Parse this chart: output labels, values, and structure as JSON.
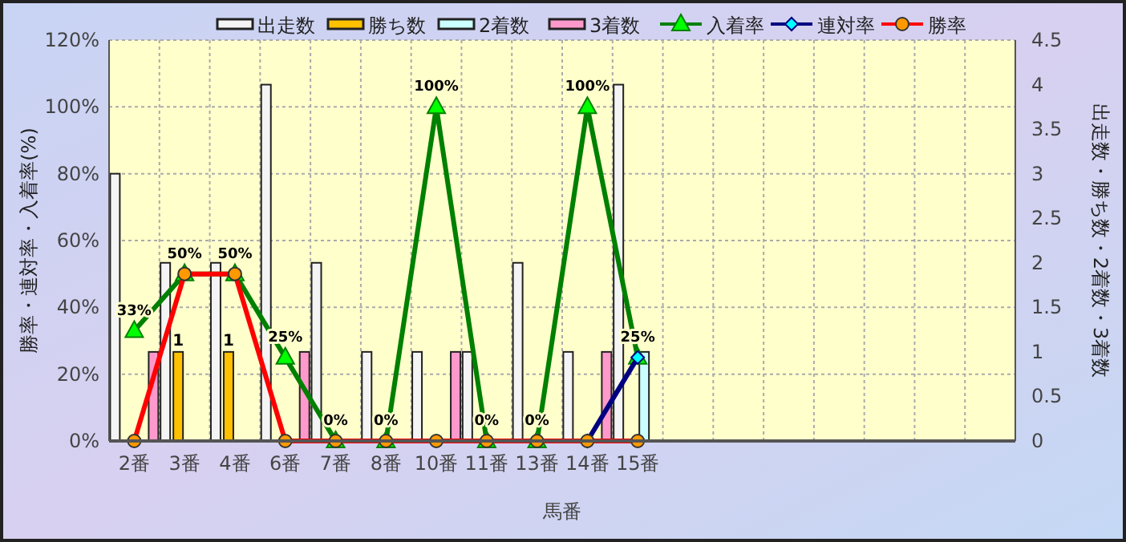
{
  "chart_data": {
    "type": "bar",
    "xlabel": "馬番",
    "ylabel": "勝率・連対率・入着率(%)",
    "y2label": "出走数・勝ち数・2着数・3着数",
    "categories": [
      "2番",
      "3番",
      "4番",
      "6番",
      "7番",
      "8番",
      "10番",
      "11番",
      "13番",
      "14番",
      "15番",
      null,
      null,
      null,
      null,
      null,
      null,
      null
    ],
    "series": [
      {
        "name": "出走数",
        "axis": "y2",
        "color": "#f4f4f4",
        "values": [
          3,
          2,
          2,
          4,
          2,
          1,
          1,
          1,
          2,
          1,
          4,
          null,
          null,
          null,
          null,
          null,
          null,
          null
        ]
      },
      {
        "name": "勝ち数",
        "axis": "y2",
        "color": "#ffc000",
        "values": [
          0,
          1,
          1,
          0,
          0,
          0,
          0,
          0,
          0,
          0,
          0,
          null,
          null,
          null,
          null,
          null,
          null,
          null
        ],
        "value_labels": [
          null,
          "1",
          "1",
          null,
          null,
          null,
          null,
          null,
          null,
          null,
          null,
          null,
          null,
          null,
          null,
          null,
          null,
          null
        ]
      },
      {
        "name": "2着数",
        "axis": "y2",
        "color": "#ccffff",
        "values": [
          0,
          0,
          0,
          0,
          0,
          0,
          0,
          0,
          0,
          0,
          1,
          null,
          null,
          null,
          null,
          null,
          null,
          null
        ]
      },
      {
        "name": "3着数",
        "axis": "y2",
        "color": "#ff99cc",
        "values": [
          1,
          0,
          0,
          1,
          0,
          0,
          1,
          0,
          0,
          1,
          0,
          null,
          null,
          null,
          null,
          null,
          null,
          null
        ]
      },
      {
        "name": "入着率",
        "type": "line",
        "axis": "y",
        "color": "#008000",
        "marker": "triangle",
        "values": [
          33,
          50,
          50,
          25,
          0,
          0,
          100,
          0,
          0,
          100,
          25,
          null,
          null,
          null,
          null,
          null,
          null,
          null
        ],
        "value_labels": [
          "33%",
          "50%",
          "50%",
          "25%",
          "0%",
          "0%",
          "100%",
          "0%",
          "0%",
          "100%",
          "25%",
          null,
          null,
          null,
          null,
          null,
          null,
          null
        ]
      },
      {
        "name": "連対率",
        "type": "line",
        "axis": "y",
        "color": "#000080",
        "marker": "diamond",
        "values": [
          null,
          null,
          null,
          null,
          null,
          null,
          null,
          null,
          null,
          0,
          25,
          null,
          null,
          null,
          null,
          null,
          null,
          null
        ]
      },
      {
        "name": "勝率",
        "type": "line",
        "axis": "y",
        "color": "#ff0000",
        "marker": "circle",
        "values": [
          0,
          50,
          50,
          0,
          0,
          0,
          0,
          0,
          0,
          0,
          0,
          null,
          null,
          null,
          null,
          null,
          null,
          null
        ]
      }
    ],
    "ylim": [
      0,
      120
    ],
    "yticks": [
      {
        "value": 0,
        "label": "0%"
      },
      {
        "value": 20,
        "label": "20%"
      },
      {
        "value": 40,
        "label": "40%"
      },
      {
        "value": 60,
        "label": "60%"
      },
      {
        "value": 80,
        "label": "80%"
      },
      {
        "value": 100,
        "label": "100%"
      },
      {
        "value": 120,
        "label": "120%"
      }
    ],
    "y2lim": [
      0,
      4.5
    ],
    "y2ticks": [
      0,
      0.5,
      1,
      1.5,
      2,
      2.5,
      3,
      3.5,
      4,
      4.5
    ],
    "grid": true,
    "legend": "top"
  }
}
